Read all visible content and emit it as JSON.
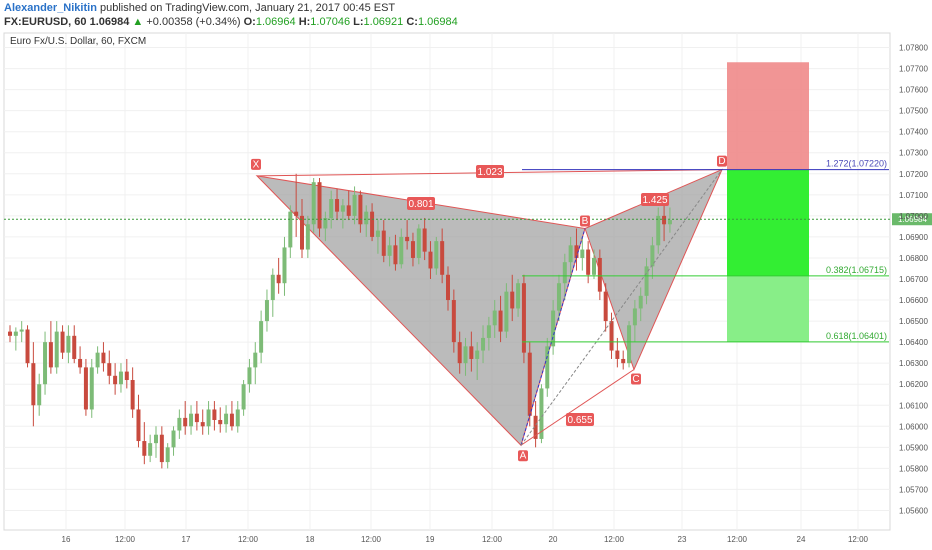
{
  "header": {
    "author": "Alexander_Nikitin",
    "published": "published on TradingView.com, January 21, 2017 00:45 EST",
    "symbol": "FX:EURUSD, 60",
    "last": "1.06984",
    "change": "+0.00358 (+0.34%)",
    "o_label": "O:",
    "o_value": "1.06964",
    "h_label": "H:",
    "h_value": "1.07046",
    "l_label": "L:",
    "l_value": "1.06921",
    "c_label": "C:",
    "c_value": "1.06984"
  },
  "colors": {
    "up": "#7dbb77",
    "down": "#c84a3e",
    "pattern_fill": "#9e9e9e",
    "pattern_edge": "#e05555",
    "loss_zone": "#f08a8a",
    "profit_zone": "#33ee33",
    "profit_zone_light": "#88ee88",
    "fib_line": "#33cc33",
    "ext_line": "#3333bb",
    "label_bg": "#e85858"
  },
  "chart_data": {
    "type": "candlestick",
    "title": "Euro Fx/U.S. Dollar, 60, FXCM",
    "ylim": [
      1.0555,
      1.0785
    ],
    "y_ticks": [
      "1.07800",
      "1.07700",
      "1.07600",
      "1.07500",
      "1.07400",
      "1.07300",
      "1.07200",
      "1.07100",
      "1.07000",
      "1.06900",
      "1.06800",
      "1.06700",
      "1.06600",
      "1.06500",
      "1.06400",
      "1.06300",
      "1.06200",
      "1.06100",
      "1.06000",
      "1.05900",
      "1.05800",
      "1.05700",
      "1.05600"
    ],
    "x_ticks": [
      "16",
      "12:00",
      "17",
      "12:00",
      "18",
      "12:00",
      "19",
      "12:00",
      "20",
      "12:00",
      "23",
      "12:00",
      "24",
      "12:00"
    ],
    "current_price": "1.06984",
    "harmonic_points": [
      {
        "label": "X",
        "price": 1.0719
      },
      {
        "label": "A",
        "price": 1.0591
      },
      {
        "label": "B",
        "price": 1.0694
      },
      {
        "label": "C",
        "price": 1.0627
      },
      {
        "label": "D",
        "price": 1.0722
      }
    ],
    "ratios": [
      "0.801",
      "0.655",
      "1.425",
      "1.023"
    ],
    "levels": [
      {
        "text": "1.272(1.07220)",
        "price": 1.0722
      },
      {
        "text": "0.382(1.06715)",
        "price": 1.06715
      },
      {
        "text": "0.618(1.06401)",
        "price": 1.06401
      }
    ],
    "zones": {
      "stop_top": 1.0773,
      "entry": 1.0722,
      "target1": 1.06715,
      "target2": 1.06401
    },
    "candles": [
      [
        1.0645,
        1.0648,
        1.064,
        1.0643
      ],
      [
        1.0643,
        1.0647,
        1.0636,
        1.0645
      ],
      [
        1.0645,
        1.065,
        1.064,
        1.0646
      ],
      [
        1.0646,
        1.0648,
        1.0628,
        1.063
      ],
      [
        1.063,
        1.064,
        1.06,
        1.061
      ],
      [
        1.061,
        1.0625,
        1.0605,
        1.062
      ],
      [
        1.062,
        1.0645,
        1.0615,
        1.064
      ],
      [
        1.064,
        1.065,
        1.0625,
        1.0628
      ],
      [
        1.0628,
        1.065,
        1.0625,
        1.0645
      ],
      [
        1.0645,
        1.0648,
        1.0632,
        1.0635
      ],
      [
        1.0635,
        1.0648,
        1.063,
        1.0643
      ],
      [
        1.0643,
        1.0648,
        1.063,
        1.0632
      ],
      [
        1.0632,
        1.0638,
        1.0625,
        1.0628
      ],
      [
        1.0628,
        1.0632,
        1.0605,
        1.0608
      ],
      [
        1.0608,
        1.0632,
        1.0604,
        1.0628
      ],
      [
        1.0628,
        1.0638,
        1.0625,
        1.0635
      ],
      [
        1.0635,
        1.064,
        1.0626,
        1.063
      ],
      [
        1.063,
        1.0636,
        1.062,
        1.0624
      ],
      [
        1.0624,
        1.063,
        1.0615,
        1.062
      ],
      [
        1.062,
        1.063,
        1.0616,
        1.0626
      ],
      [
        1.0626,
        1.0632,
        1.0618,
        1.0622
      ],
      [
        1.0622,
        1.0628,
        1.0604,
        1.0608
      ],
      [
        1.0608,
        1.0615,
        1.059,
        1.0593
      ],
      [
        1.0593,
        1.0602,
        1.0582,
        1.0586
      ],
      [
        1.0586,
        1.0596,
        1.0583,
        1.0592
      ],
      [
        1.0592,
        1.06,
        1.0585,
        1.0596
      ],
      [
        1.0596,
        1.06,
        1.058,
        1.0583
      ],
      [
        1.0583,
        1.0592,
        1.058,
        1.059
      ],
      [
        1.059,
        1.06,
        1.0586,
        1.0598
      ],
      [
        1.0598,
        1.0608,
        1.0594,
        1.0604
      ],
      [
        1.0604,
        1.0612,
        1.0596,
        1.06
      ],
      [
        1.06,
        1.061,
        1.0596,
        1.0606
      ],
      [
        1.0606,
        1.0612,
        1.0598,
        1.0602
      ],
      [
        1.0602,
        1.0608,
        1.0596,
        1.06
      ],
      [
        1.06,
        1.0612,
        1.0596,
        1.0608
      ],
      [
        1.0608,
        1.0612,
        1.0598,
        1.0603
      ],
      [
        1.0603,
        1.0609,
        1.0597,
        1.0601
      ],
      [
        1.0601,
        1.061,
        1.0597,
        1.0606
      ],
      [
        1.0606,
        1.0612,
        1.0598,
        1.06
      ],
      [
        1.06,
        1.0612,
        1.0597,
        1.0608
      ],
      [
        1.0608,
        1.0622,
        1.0605,
        1.062
      ],
      [
        1.062,
        1.0632,
        1.0616,
        1.0628
      ],
      [
        1.0628,
        1.064,
        1.062,
        1.0635
      ],
      [
        1.0635,
        1.0655,
        1.063,
        1.065
      ],
      [
        1.065,
        1.0665,
        1.0645,
        1.066
      ],
      [
        1.066,
        1.0675,
        1.0652,
        1.0672
      ],
      [
        1.0672,
        1.068,
        1.0663,
        1.0668
      ],
      [
        1.0668,
        1.069,
        1.0662,
        1.0685
      ],
      [
        1.0685,
        1.0705,
        1.068,
        1.0702
      ],
      [
        1.0702,
        1.072,
        1.069,
        1.07
      ],
      [
        1.07,
        1.0708,
        1.068,
        1.0684
      ],
      [
        1.0684,
        1.07,
        1.068,
        1.0696
      ],
      [
        1.0696,
        1.0718,
        1.0692,
        1.0716
      ],
      [
        1.0716,
        1.0718,
        1.069,
        1.0694
      ],
      [
        1.0694,
        1.0702,
        1.0688,
        1.0699
      ],
      [
        1.0699,
        1.0712,
        1.0694,
        1.0708
      ],
      [
        1.0708,
        1.0713,
        1.0698,
        1.0702
      ],
      [
        1.0702,
        1.0708,
        1.0694,
        1.0705
      ],
      [
        1.0705,
        1.0712,
        1.0698,
        1.07
      ],
      [
        1.07,
        1.0714,
        1.0696,
        1.071
      ],
      [
        1.071,
        1.0712,
        1.0692,
        1.0696
      ],
      [
        1.0696,
        1.0705,
        1.069,
        1.0702
      ],
      [
        1.0702,
        1.0706,
        1.0688,
        1.069
      ],
      [
        1.069,
        1.0698,
        1.0682,
        1.0693
      ],
      [
        1.0693,
        1.0698,
        1.0678,
        1.0681
      ],
      [
        1.0681,
        1.069,
        1.0676,
        1.0686
      ],
      [
        1.0686,
        1.0691,
        1.0674,
        1.0677
      ],
      [
        1.0677,
        1.0694,
        1.0675,
        1.069
      ],
      [
        1.069,
        1.0698,
        1.0684,
        1.0688
      ],
      [
        1.0688,
        1.0692,
        1.0676,
        1.068
      ],
      [
        1.068,
        1.0696,
        1.0677,
        1.0694
      ],
      [
        1.0694,
        1.0699,
        1.0679,
        1.0683
      ],
      [
        1.0683,
        1.0688,
        1.067,
        1.0675
      ],
      [
        1.0675,
        1.069,
        1.0672,
        1.0688
      ],
      [
        1.0688,
        1.0694,
        1.0668,
        1.0672
      ],
      [
        1.0672,
        1.0676,
        1.0655,
        1.066
      ],
      [
        1.066,
        1.0665,
        1.0635,
        1.064
      ],
      [
        1.064,
        1.0645,
        1.0625,
        1.063
      ],
      [
        1.063,
        1.0642,
        1.0624,
        1.0638
      ],
      [
        1.0638,
        1.0645,
        1.0626,
        1.0632
      ],
      [
        1.0632,
        1.064,
        1.0622,
        1.0636
      ],
      [
        1.0636,
        1.0648,
        1.063,
        1.0642
      ],
      [
        1.0642,
        1.0652,
        1.0636,
        1.0648
      ],
      [
        1.0648,
        1.066,
        1.0642,
        1.0655
      ],
      [
        1.0655,
        1.0662,
        1.064,
        1.0645
      ],
      [
        1.0645,
        1.0668,
        1.0642,
        1.0664
      ],
      [
        1.0664,
        1.0672,
        1.065,
        1.0656
      ],
      [
        1.0656,
        1.067,
        1.0652,
        1.0668
      ],
      [
        1.0668,
        1.0672,
        1.063,
        1.0635
      ],
      [
        1.0635,
        1.064,
        1.06,
        1.0605
      ],
      [
        1.0605,
        1.0612,
        1.059,
        1.0594
      ],
      [
        1.0594,
        1.062,
        1.0592,
        1.0618
      ],
      [
        1.0618,
        1.0642,
        1.0614,
        1.0638
      ],
      [
        1.0638,
        1.066,
        1.0634,
        1.0655
      ],
      [
        1.0655,
        1.0672,
        1.065,
        1.0668
      ],
      [
        1.0668,
        1.0682,
        1.066,
        1.0678
      ],
      [
        1.0678,
        1.069,
        1.0672,
        1.0686
      ],
      [
        1.0686,
        1.0694,
        1.0674,
        1.068
      ],
      [
        1.068,
        1.069,
        1.0674,
        1.0684
      ],
      [
        1.0684,
        1.0688,
        1.0668,
        1.0672
      ],
      [
        1.0672,
        1.0684,
        1.067,
        1.068
      ],
      [
        1.068,
        1.0684,
        1.066,
        1.0664
      ],
      [
        1.0664,
        1.0668,
        1.0645,
        1.065
      ],
      [
        1.065,
        1.0654,
        1.0632,
        1.0636
      ],
      [
        1.0636,
        1.0642,
        1.0628,
        1.0632
      ],
      [
        1.0632,
        1.0636,
        1.0627,
        1.063
      ],
      [
        1.063,
        1.065,
        1.0628,
        1.0648
      ],
      [
        1.0648,
        1.066,
        1.064,
        1.0656
      ],
      [
        1.0656,
        1.0666,
        1.065,
        1.0662
      ],
      [
        1.0662,
        1.068,
        1.0658,
        1.0676
      ],
      [
        1.0676,
        1.069,
        1.067,
        1.0686
      ],
      [
        1.0686,
        1.0704,
        1.0682,
        1.07
      ],
      [
        1.07,
        1.0705,
        1.0688,
        1.0696
      ],
      [
        1.0696,
        1.0704,
        1.0692,
        1.0698
      ]
    ]
  }
}
